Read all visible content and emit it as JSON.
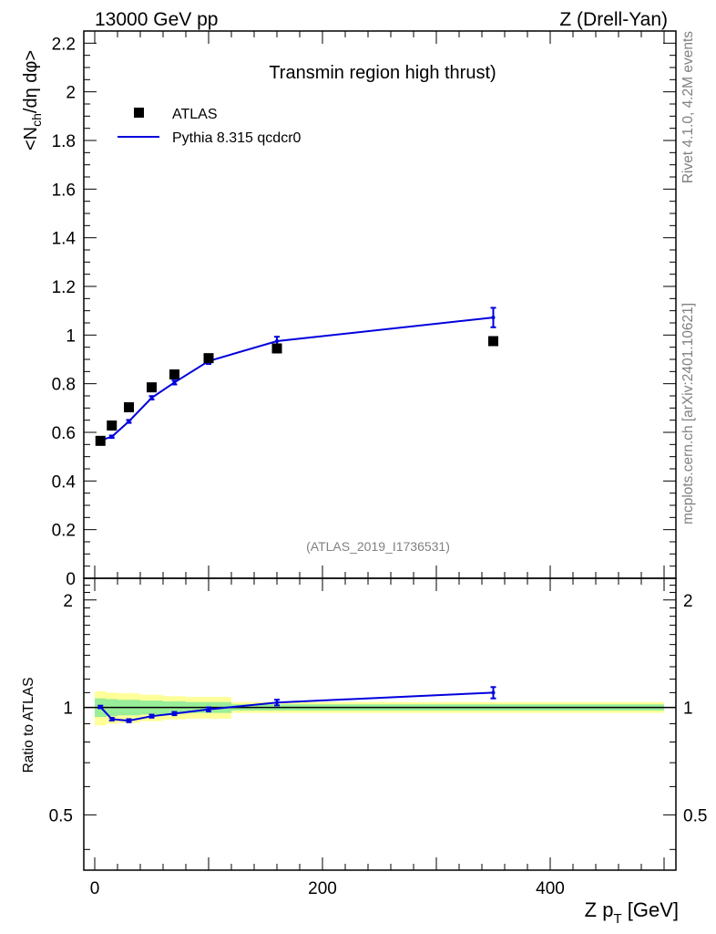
{
  "header": {
    "energy_label": "13000 GeV pp",
    "process_label": "Z (Drell-Yan)"
  },
  "side": {
    "rivet_label": "Rivet 4.1.0,  4.2M events",
    "mcplots_label": "mcplots.cern.ch [arXiv:2401.10621]"
  },
  "legend": {
    "data_label": "ATLAS",
    "mc_label": "Pythia 8.315 qcdcr0"
  },
  "colors": {
    "data": "#000000",
    "mc": "#0000dd",
    "band_inner": "#99ee99",
    "band_outer": "#ffff99"
  },
  "chart_data": {
    "type": "scatter",
    "title": "Transmin region high thrust)",
    "analysis_label": "(ATLAS_2019_I1736531)",
    "xlabel": "Z p_T [GeV]",
    "xlabel_main": "Z p",
    "xlabel_sub": "T",
    "xlabel_unit": " [GeV]",
    "ylabel": "<N_ch/dη dφ>",
    "ylabel_prefix": "<N",
    "ylabel_sub": "ch",
    "ylabel_suffix": "/dη dφ>",
    "ratio_ylabel": "Ratio to ATLAS",
    "xlim": [
      -10,
      510
    ],
    "ylim": [
      0,
      2.25
    ],
    "ratio_ylim": [
      0.35,
      2.3
    ],
    "x_ticks": [
      "0",
      "200",
      "400"
    ],
    "x_tick_values": [
      0,
      200,
      400
    ],
    "y_ticks": [
      "0",
      "0.2",
      "0.4",
      "0.6",
      "0.8",
      "1",
      "1.2",
      "1.4",
      "1.6",
      "1.8",
      "2",
      "2.2"
    ],
    "y_tick_values": [
      0,
      0.2,
      0.4,
      0.6,
      0.8,
      1.0,
      1.2,
      1.4,
      1.6,
      1.8,
      2.0,
      2.2
    ],
    "ratio_ticks": [
      "0.5",
      "1",
      "2"
    ],
    "ratio_tick_values": [
      0.5,
      1,
      2
    ],
    "series": [
      {
        "name": "ATLAS",
        "x": [
          5,
          15,
          30,
          50,
          70,
          100,
          160,
          350
        ],
        "values": [
          0.565,
          0.628,
          0.703,
          0.785,
          0.838,
          0.905,
          0.945,
          0.975
        ]
      },
      {
        "name": "Pythia 8.315 qcdcr0",
        "x": [
          5,
          15,
          30,
          50,
          70,
          100,
          160,
          350
        ],
        "values": [
          0.567,
          0.582,
          0.645,
          0.742,
          0.805,
          0.893,
          0.975,
          1.072
        ],
        "errors": [
          0.005,
          0.005,
          0.006,
          0.007,
          0.008,
          0.012,
          0.018,
          0.04
        ]
      }
    ],
    "ratio": {
      "x": [
        5,
        15,
        30,
        50,
        70,
        100,
        160,
        350
      ],
      "values": [
        1.003,
        0.927,
        0.918,
        0.945,
        0.961,
        0.987,
        1.032,
        1.1
      ],
      "errors": [
        0.008,
        0.008,
        0.009,
        0.009,
        0.01,
        0.013,
        0.019,
        0.04
      ]
    },
    "ratio_bands": {
      "bin_edges": [
        0,
        10,
        20,
        40,
        60,
        80,
        120,
        200,
        500
      ],
      "inner": [
        0.06,
        0.055,
        0.05,
        0.045,
        0.04,
        0.035,
        0.02,
        0.02
      ],
      "outer": [
        0.11,
        0.1,
        0.095,
        0.085,
        0.075,
        0.07,
        0.035,
        0.035
      ]
    }
  }
}
